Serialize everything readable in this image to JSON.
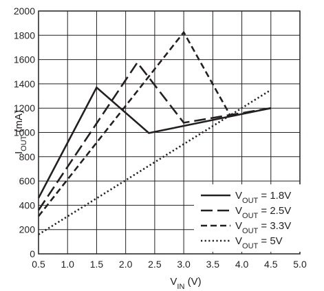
{
  "chart_data": {
    "type": "line",
    "xlabel": "V",
    "xlabel_sub": "IN",
    "xlabel_unit": " (V)",
    "ylabel": "I",
    "ylabel_sub": "OUT",
    "ylabel_unit": " (mA)",
    "xlim": [
      0.5,
      5.0
    ],
    "ylim": [
      0,
      2000
    ],
    "xticks": [
      "0.5",
      "1.0",
      "1.5",
      "2.0",
      "2.5",
      "3.0",
      "3.5",
      "4.0",
      "4.5",
      "5.0"
    ],
    "yticks": [
      "0",
      "200",
      "400",
      "600",
      "800",
      "1000",
      "1200",
      "1400",
      "1600",
      "1800",
      "2000"
    ],
    "grid": true,
    "legend_position": "bottom-right",
    "series": [
      {
        "name": "V",
        "name_sub": "OUT",
        "name_suffix": " = 1.8V",
        "style": "solid",
        "x": [
          0.5,
          1.5,
          2.4,
          4.5
        ],
        "y": [
          460,
          1370,
          995,
          1200
        ]
      },
      {
        "name": "V",
        "name_sub": "OUT",
        "name_suffix": " = 2.5V",
        "style": "long-dash",
        "x": [
          0.5,
          2.2,
          3.0,
          4.5
        ],
        "y": [
          360,
          1575,
          1080,
          1200
        ]
      },
      {
        "name": "V",
        "name_sub": "OUT",
        "name_suffix": " = 3.3V",
        "style": "short-dash",
        "x": [
          0.5,
          3.0,
          3.8
        ],
        "y": [
          310,
          1825,
          1140
        ]
      },
      {
        "name": "V",
        "name_sub": "OUT",
        "name_suffix": " = 5V",
        "style": "dotted",
        "x": [
          0.5,
          4.5
        ],
        "y": [
          160,
          1350
        ]
      }
    ]
  }
}
